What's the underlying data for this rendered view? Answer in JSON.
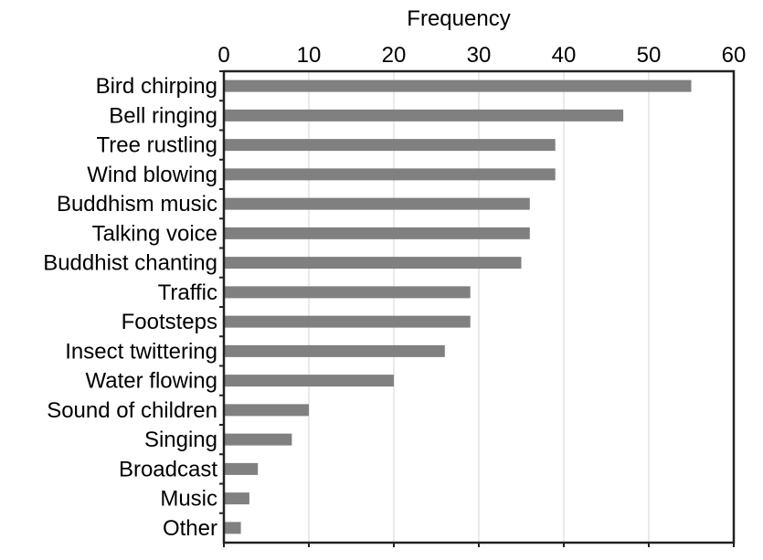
{
  "chart_data": {
    "type": "bar",
    "orientation": "horizontal",
    "xlabel": "Frequency",
    "ylabel": "",
    "xlim": [
      0,
      60
    ],
    "x_ticks": [
      0,
      10,
      20,
      30,
      40,
      50,
      60
    ],
    "x_axis_position": "top",
    "grid": "vertical",
    "legend": "none",
    "bar_color": "#808080",
    "categories": [
      "Bird chirping",
      "Bell ringing",
      "Tree rustling",
      "Wind blowing",
      "Buddhism music",
      "Talking voice",
      "Buddhist chanting",
      "Traffic",
      "Footsteps",
      "Insect twittering",
      "Water flowing",
      "Sound of children",
      "Singing",
      "Broadcast",
      "Music",
      "Other"
    ],
    "values": [
      55,
      47,
      39,
      39,
      36,
      36,
      35,
      29,
      29,
      26,
      20,
      10,
      8,
      4,
      3,
      2
    ]
  }
}
